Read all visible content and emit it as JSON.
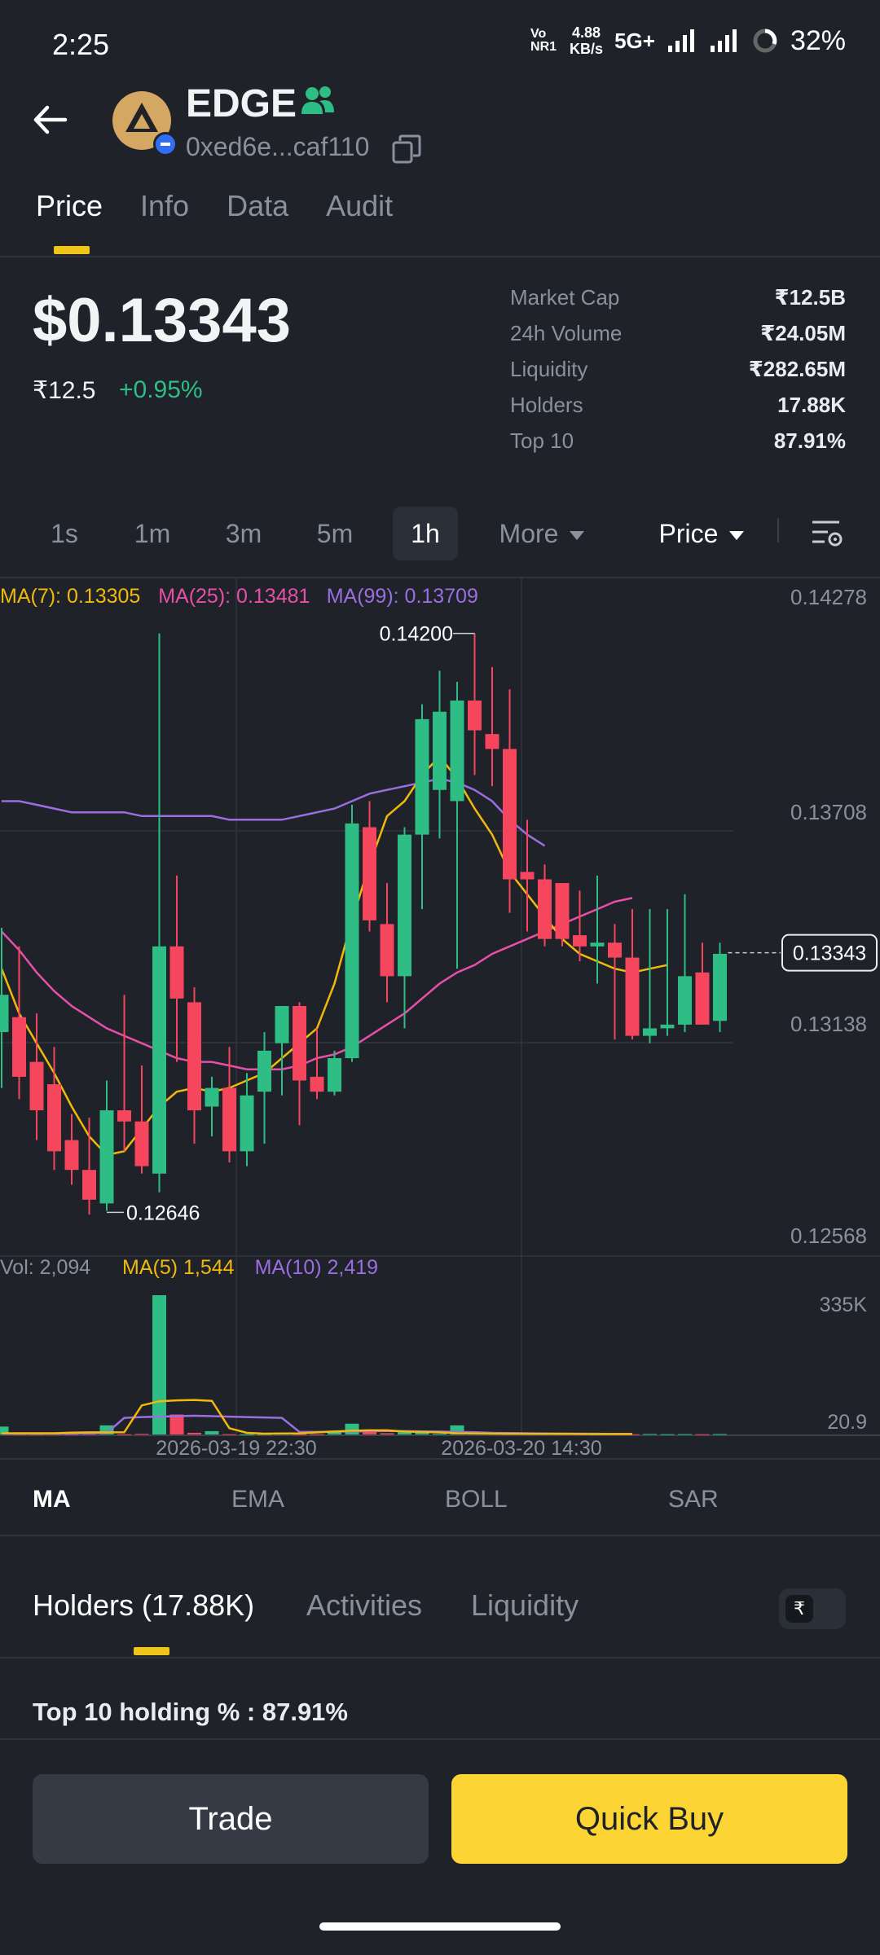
{
  "status_bar": {
    "time": "2:25",
    "volte": "Vo NR1",
    "net_speed_value": "4.88",
    "net_speed_unit": "KB/s",
    "network": "5G+",
    "battery": "32%"
  },
  "header": {
    "token_name": "EDGE",
    "address": "0xed6e...caf110"
  },
  "tabs": [
    "Price",
    "Info",
    "Data",
    "Audit"
  ],
  "price": {
    "usd": "$0.13343",
    "inr": "₹12.5",
    "change": "+0.95%"
  },
  "stats": [
    {
      "label": "Market Cap",
      "value": "₹12.5B"
    },
    {
      "label": "24h Volume",
      "value": "₹24.05M"
    },
    {
      "label": "Liquidity",
      "value": "₹282.65M"
    },
    {
      "label": "Holders",
      "value": "17.88K"
    },
    {
      "label": "Top 10",
      "value": "87.91%"
    }
  ],
  "intervals": [
    "1s",
    "1m",
    "3m",
    "5m",
    "1h"
  ],
  "interval_active": "1h",
  "more_label": "More",
  "price_toggle_label": "Price",
  "colors": {
    "up": "#2ebd85",
    "down": "#f6465d",
    "ma7": "#f0b90b",
    "ma25": "#e84fa9",
    "ma99": "#9a6ee0",
    "accent": "#fcd535"
  },
  "chart_data": {
    "type": "candlestick",
    "interval": "1h",
    "ma_legend": [
      {
        "text": "MA(7): 0.13305",
        "color": "#f0b90b"
      },
      {
        "text": "MA(25): 0.13481",
        "color": "#e84fa9"
      },
      {
        "text": "MA(99): 0.13709",
        "color": "#9a6ee0"
      }
    ],
    "y_ticks": [
      "0.14278",
      "0.13708",
      "0.13138",
      "0.12568"
    ],
    "y_tick_values": [
      0.14278,
      0.13708,
      0.13138,
      0.12568
    ],
    "current_price": "0.13343",
    "high_label": "0.14200",
    "low_label": "0.12646",
    "x_labels": [
      "2026-03-19 22:30",
      "2026-03-20 14:30"
    ],
    "candles": [
      {
        "o": 0.1313,
        "h": 0.1341,
        "l": 0.1298,
        "c": 0.1323
      },
      {
        "o": 0.1317,
        "h": 0.1336,
        "l": 0.1295,
        "c": 0.1301
      },
      {
        "o": 0.1305,
        "h": 0.1318,
        "l": 0.1284,
        "c": 0.1292
      },
      {
        "o": 0.1299,
        "h": 0.1309,
        "l": 0.1276,
        "c": 0.1281
      },
      {
        "o": 0.1284,
        "h": 0.1291,
        "l": 0.1272,
        "c": 0.1276
      },
      {
        "o": 0.1276,
        "h": 0.129,
        "l": 0.1264,
        "c": 0.1268
      },
      {
        "o": 0.1267,
        "h": 0.13,
        "l": 0.1265,
        "c": 0.1292
      },
      {
        "o": 0.1292,
        "h": 0.1323,
        "l": 0.1281,
        "c": 0.1289
      },
      {
        "o": 0.1289,
        "h": 0.1304,
        "l": 0.1275,
        "c": 0.1277
      },
      {
        "o": 0.1275,
        "h": 0.142,
        "l": 0.127,
        "c": 0.1336
      },
      {
        "o": 0.1336,
        "h": 0.1355,
        "l": 0.1305,
        "c": 0.1322
      },
      {
        "o": 0.1321,
        "h": 0.1325,
        "l": 0.1283,
        "c": 0.1292
      },
      {
        "o": 0.1293,
        "h": 0.1301,
        "l": 0.1285,
        "c": 0.1298
      },
      {
        "o": 0.1298,
        "h": 0.1309,
        "l": 0.1278,
        "c": 0.1281
      },
      {
        "o": 0.1281,
        "h": 0.1302,
        "l": 0.1277,
        "c": 0.1296
      },
      {
        "o": 0.1297,
        "h": 0.1313,
        "l": 0.1283,
        "c": 0.1308
      },
      {
        "o": 0.131,
        "h": 0.1319,
        "l": 0.1296,
        "c": 0.132
      },
      {
        "o": 0.132,
        "h": 0.1321,
        "l": 0.1288,
        "c": 0.13
      },
      {
        "o": 0.1301,
        "h": 0.1314,
        "l": 0.1295,
        "c": 0.1297
      },
      {
        "o": 0.1297,
        "h": 0.1308,
        "l": 0.1296,
        "c": 0.1306
      },
      {
        "o": 0.1306,
        "h": 0.1374,
        "l": 0.1305,
        "c": 0.1369
      },
      {
        "o": 0.1368,
        "h": 0.1375,
        "l": 0.134,
        "c": 0.1343
      },
      {
        "o": 0.1342,
        "h": 0.1353,
        "l": 0.1321,
        "c": 0.1328
      },
      {
        "o": 0.1328,
        "h": 0.1368,
        "l": 0.1314,
        "c": 0.1366
      },
      {
        "o": 0.1366,
        "h": 0.1401,
        "l": 0.1346,
        "c": 0.1397
      },
      {
        "o": 0.1378,
        "h": 0.141,
        "l": 0.1365,
        "c": 0.1399
      },
      {
        "o": 0.1375,
        "h": 0.1407,
        "l": 0.133,
        "c": 0.1402
      },
      {
        "o": 0.1402,
        "h": 0.142,
        "l": 0.1382,
        "c": 0.1394
      },
      {
        "o": 0.1393,
        "h": 0.1411,
        "l": 0.1379,
        "c": 0.1389
      },
      {
        "o": 0.1389,
        "h": 0.1405,
        "l": 0.1345,
        "c": 0.1354
      },
      {
        "o": 0.1356,
        "h": 0.137,
        "l": 0.134,
        "c": 0.1354
      },
      {
        "o": 0.1354,
        "h": 0.1358,
        "l": 0.1336,
        "c": 0.1338
      },
      {
        "o": 0.1353,
        "h": 0.1353,
        "l": 0.1336,
        "c": 0.1338
      },
      {
        "o": 0.1339,
        "h": 0.1351,
        "l": 0.1332,
        "c": 0.1336
      },
      {
        "o": 0.1336,
        "h": 0.1355,
        "l": 0.1326,
        "c": 0.1337
      },
      {
        "o": 0.1337,
        "h": 0.1342,
        "l": 0.1311,
        "c": 0.1333
      },
      {
        "o": 0.1333,
        "h": 0.1346,
        "l": 0.1311,
        "c": 0.1312
      },
      {
        "o": 0.1312,
        "h": 0.1346,
        "l": 0.131,
        "c": 0.1314
      },
      {
        "o": 0.1314,
        "h": 0.1346,
        "l": 0.1312,
        "c": 0.1315
      },
      {
        "o": 0.1315,
        "h": 0.135,
        "l": 0.1313,
        "c": 0.1328
      },
      {
        "o": 0.1329,
        "h": 0.1337,
        "l": 0.1315,
        "c": 0.1315
      },
      {
        "o": 0.1316,
        "h": 0.1337,
        "l": 0.1313,
        "c": 0.1334
      }
    ],
    "ma7": [
      0.133,
      0.1318,
      0.131,
      0.1302,
      0.1293,
      0.1285,
      0.128,
      0.1281,
      0.1287,
      0.1293,
      0.1297,
      0.1298,
      0.1297,
      0.1298,
      0.13,
      0.1302,
      0.1306,
      0.131,
      0.1314,
      0.1326,
      0.1343,
      0.1358,
      0.1371,
      0.1375,
      0.1382,
      0.1387,
      0.1381,
      0.1373,
      0.1366,
      0.1356,
      0.135,
      0.1344,
      0.1338,
      0.1334,
      0.1332,
      0.133,
      0.1329,
      0.133,
      0.1331
    ],
    "ma25": [
      0.134,
      0.1335,
      0.1329,
      0.1324,
      0.132,
      0.1317,
      0.1314,
      0.1312,
      0.131,
      0.1308,
      0.1306,
      0.1305,
      0.1305,
      0.1304,
      0.1303,
      0.1303,
      0.1303,
      0.1304,
      0.1306,
      0.1307,
      0.1309,
      0.1312,
      0.1315,
      0.1318,
      0.1322,
      0.1326,
      0.1329,
      0.1331,
      0.1334,
      0.1336,
      0.1338,
      0.134,
      0.1342,
      0.1344,
      0.1346,
      0.1348,
      0.1349
    ],
    "ma99": [
      0.1375,
      0.1375,
      0.1374,
      0.1373,
      0.1372,
      0.1372,
      0.1372,
      0.1372,
      0.1371,
      0.1371,
      0.1371,
      0.1371,
      0.1371,
      0.137,
      0.137,
      0.137,
      0.137,
      0.1371,
      0.1372,
      0.1373,
      0.1375,
      0.1377,
      0.1378,
      0.1379,
      0.138,
      0.1381,
      0.138,
      0.1378,
      0.1375,
      0.137,
      0.1366,
      0.1363
    ],
    "volume": {
      "legend": [
        {
          "text": "Vol: 2,094",
          "color": "#8a919e"
        },
        {
          "text": "MA(5) 1,544",
          "color": "#f0b90b"
        },
        {
          "text": "MA(10) 2,419",
          "color": "#9a6ee0"
        }
      ],
      "y_ticks": [
        "335K",
        "20.9"
      ],
      "ymax": 335000,
      "values": [
        19000,
        1000,
        800,
        1200,
        800,
        1500,
        22000,
        600,
        1500,
        335000,
        48000,
        4000,
        8000,
        700,
        600,
        900,
        1800,
        900,
        600,
        6000,
        26000,
        12000,
        3000,
        9000,
        6000,
        1800,
        22000,
        3000,
        5000,
        1200,
        1200,
        900,
        700,
        700,
        600,
        800,
        600,
        1300,
        700,
        900,
        600,
        1100
      ],
      "ma5": [
        3000,
        3000,
        3000,
        3000,
        4500,
        5000,
        5000,
        5200,
        70000,
        80000,
        82000,
        83000,
        81000,
        15000,
        4000,
        2000,
        2500,
        2800,
        5000,
        7000,
        9000,
        10000,
        10000,
        7000,
        6000,
        5000,
        3000,
        2500,
        2000,
        1800,
        1500,
        1400,
        1300,
        1200,
        1000,
        900,
        900
      ],
      "ma10": [
        2000,
        2000,
        2000,
        2000,
        2500,
        3000,
        3500,
        40000,
        42000,
        43000,
        44000,
        45000,
        44000,
        43000,
        42000,
        41000,
        40000,
        6000,
        6000,
        7000,
        7500,
        8000,
        8500,
        8000,
        7500,
        7000,
        6000,
        5500,
        4000,
        3500,
        3000,
        2500,
        2200,
        2000,
        1800,
        1600,
        1500
      ]
    }
  },
  "indicators": [
    "MA",
    "EMA",
    "BOLL",
    "SAR"
  ],
  "bottom_tabs": [
    "Holders (17.88K)",
    "Activities",
    "Liquidity"
  ],
  "currency_symbol": "₹",
  "top10_holding": "Top 10 holding % :  87.91%",
  "buttons": {
    "trade": "Trade",
    "quick_buy": "Quick Buy"
  }
}
